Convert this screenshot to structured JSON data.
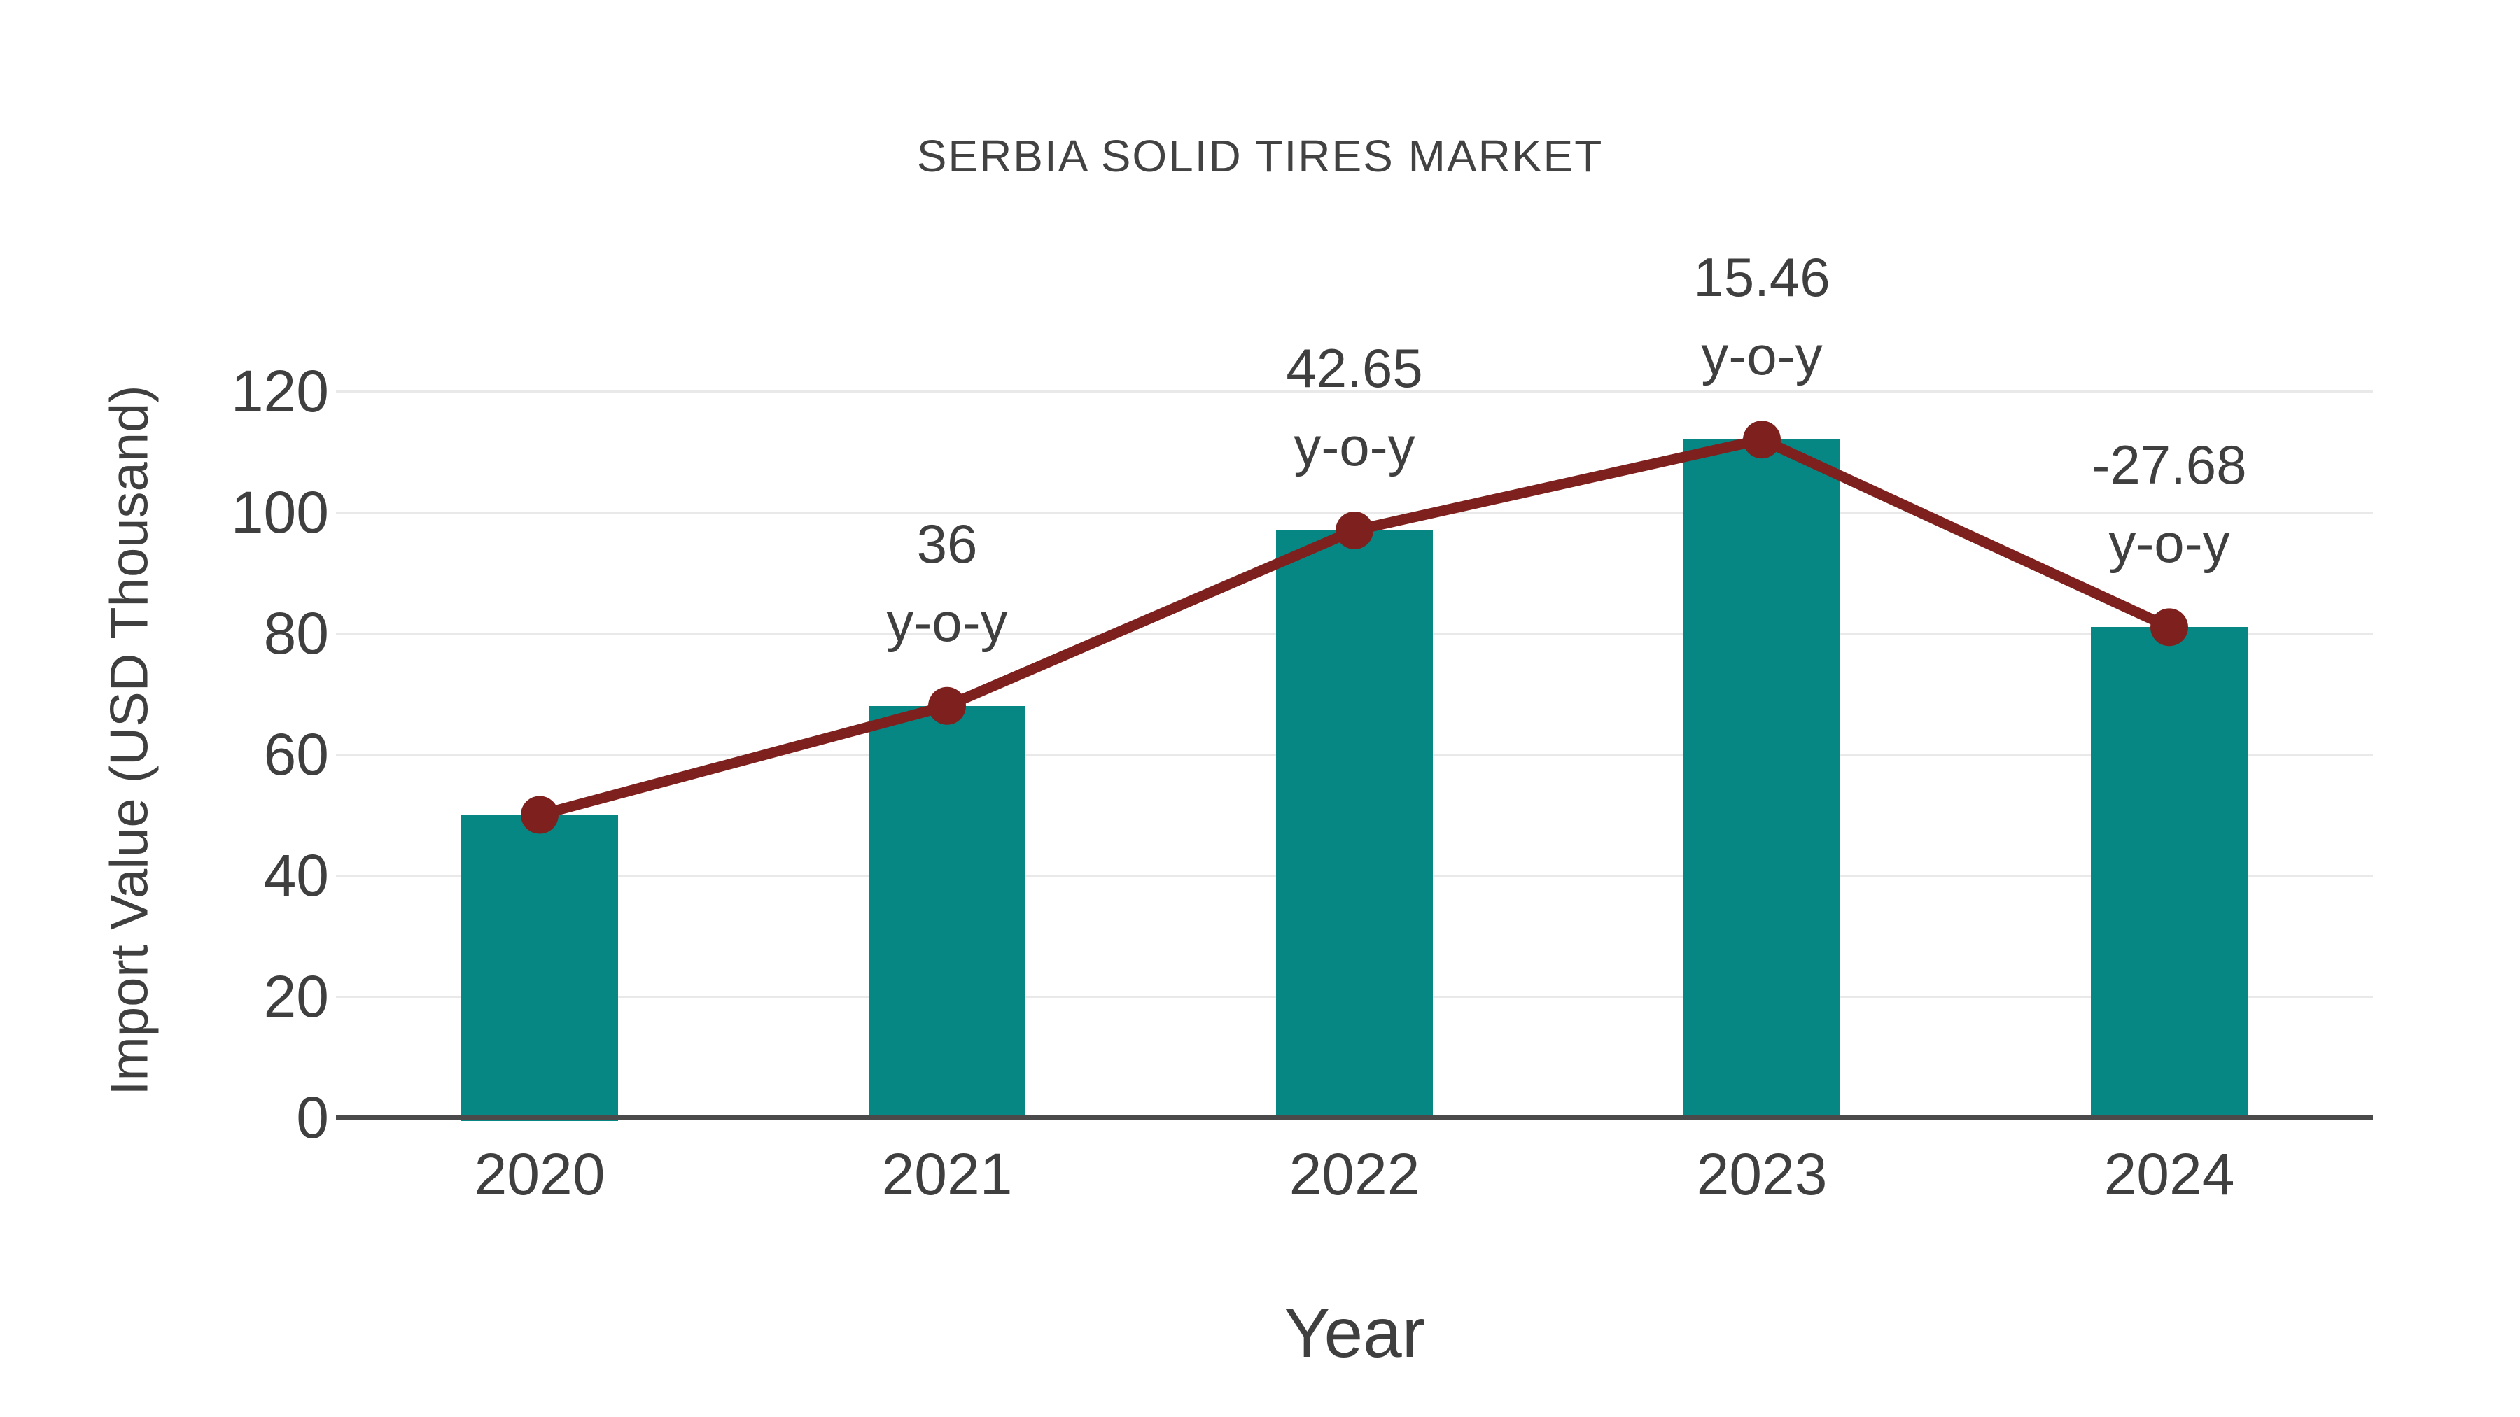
{
  "title": "SERBIA SOLID TIRES MARKET",
  "chart_data": {
    "type": "bar",
    "title": "SERBIA SOLID TIRES MARKET",
    "categories": [
      "2020",
      "2021",
      "2022",
      "2023",
      "2024"
    ],
    "series": [
      {
        "name": "Import Value bars",
        "type": "bar",
        "values": [
          50,
          68,
          97,
          112,
          81
        ],
        "color": "#068783"
      },
      {
        "name": "Import Value trend line",
        "type": "line",
        "values": [
          50,
          68,
          97,
          112,
          81
        ],
        "color": "#7e211e",
        "marker": "circle"
      }
    ],
    "annotations": [
      {
        "category": "2021",
        "text_lines": [
          "36",
          "y-o-y"
        ]
      },
      {
        "category": "2022",
        "text_lines": [
          "42.65",
          "y-o-y"
        ]
      },
      {
        "category": "2023",
        "text_lines": [
          "15.46",
          "y-o-y"
        ]
      },
      {
        "category": "2024",
        "text_lines": [
          "-27.68",
          "y-o-y"
        ]
      }
    ],
    "xlabel": "Year",
    "ylabel": "Import Value (USD Thousand)",
    "ylim": [
      0,
      120
    ],
    "yticks": [
      0,
      20,
      40,
      60,
      80,
      100,
      120
    ],
    "grid": true,
    "legend_position": "none"
  },
  "colors": {
    "bar": "#068783",
    "line": "#7e211e",
    "gridline": "#e9e9e9",
    "axis_line": "#4a4a4a",
    "text": "#3f3f3f",
    "title_text": "#424242",
    "background": "#ffffff"
  }
}
